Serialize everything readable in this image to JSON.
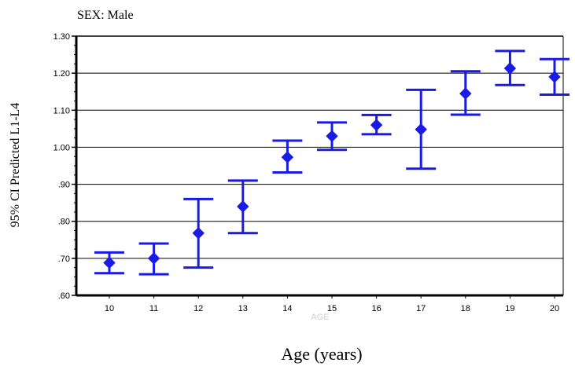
{
  "chart_data": {
    "type": "errorbar",
    "subtitle": "SEX: Male",
    "ylabel": "95% CI Predicted L1-L4",
    "xaxis_faint_label": "AGE",
    "xlabel": "Age (years)",
    "ylim": [
      0.6,
      1.3
    ],
    "yticks": [
      {
        "value": 0.6,
        "label": ".60"
      },
      {
        "value": 0.7,
        "label": ".70"
      },
      {
        "value": 0.8,
        "label": ".80"
      },
      {
        "value": 0.9,
        "label": ".90"
      },
      {
        "value": 1.0,
        "label": "1.00"
      },
      {
        "value": 1.1,
        "label": "1.10"
      },
      {
        "value": 1.2,
        "label": "1.20"
      },
      {
        "value": 1.3,
        "label": "1.30"
      }
    ],
    "grid": "horizontal",
    "color": "#1a1ae6",
    "categories": [
      "10",
      "11",
      "12",
      "13",
      "14",
      "15",
      "16",
      "17",
      "18",
      "19",
      "20"
    ],
    "mean": [
      0.688,
      0.7,
      0.768,
      0.84,
      0.973,
      1.03,
      1.06,
      1.048,
      1.145,
      1.213,
      1.19
    ],
    "lower": [
      0.66,
      0.657,
      0.675,
      0.768,
      0.932,
      0.993,
      1.035,
      0.942,
      1.088,
      1.168,
      1.142
    ],
    "upper": [
      0.716,
      0.74,
      0.86,
      0.91,
      1.018,
      1.067,
      1.087,
      1.155,
      1.205,
      1.26,
      1.238
    ]
  }
}
